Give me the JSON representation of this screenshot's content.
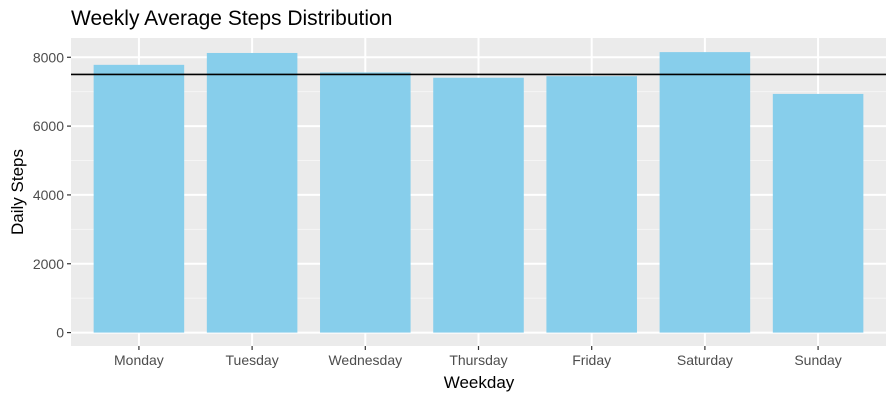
{
  "chart_data": {
    "type": "bar",
    "title": "Weekly Average Steps Distribution",
    "xlabel": "Weekday",
    "ylabel": "Daily Steps",
    "categories": [
      "Monday",
      "Tuesday",
      "Wednesday",
      "Thursday",
      "Friday",
      "Saturday",
      "Sunday"
    ],
    "values": [
      7780,
      8125,
      7560,
      7405,
      7450,
      8150,
      6935
    ],
    "reference_line": 7500,
    "ylim": [
      -390,
      8560
    ],
    "yticks": [
      0,
      2000,
      4000,
      6000,
      8000
    ],
    "ytick_labels": [
      "0",
      "2000",
      "4000",
      "6000",
      "8000"
    ],
    "grid": true,
    "colors": {
      "bar": "#87CEEB",
      "panel_background": "#EBEBEB",
      "grid_major": "#FFFFFF",
      "grid_minor": "#F5F5F5",
      "reference_line": "#000000",
      "tick": "#333333"
    }
  }
}
